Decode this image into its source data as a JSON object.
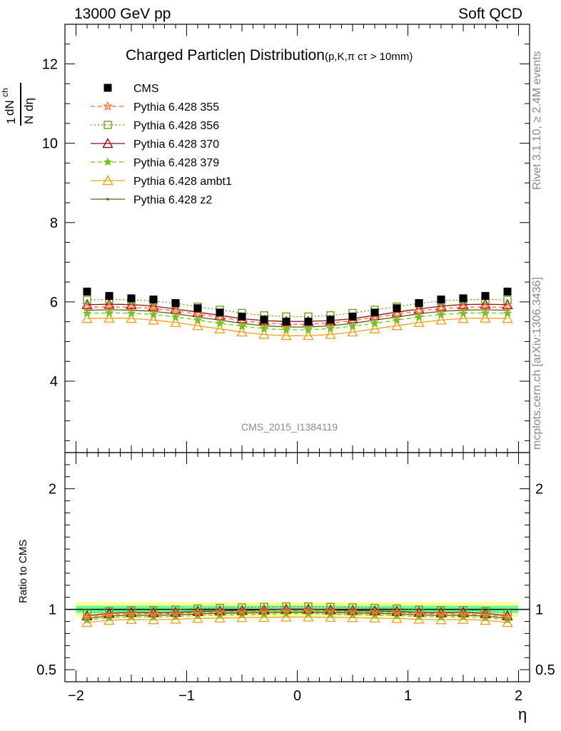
{
  "header": {
    "left": "13000 GeV pp",
    "right": "Soft QCD"
  },
  "plot_title": {
    "main": "Charged Particleη Distribution",
    "sub": "(p,K,π cτ > 10mm)"
  },
  "side_labels": {
    "rivet": "Rivet 3.1.10, ≥ 2.4M events",
    "mcplots": "mcplots.cern.ch [arXiv:1306.3436]"
  },
  "watermark": "CMS_2015_I1384119",
  "axes": {
    "ylabel_main_num": "1",
    "ylabel_main_dn": "dN",
    "ylabel_main_ch": "ch",
    "ylabel_main_N": "N",
    "ylabel_main_deta": "dη",
    "ylabel_ratio": "Ratio to CMS",
    "xlabel": "η"
  },
  "colors": {
    "cms": "#000000",
    "p355": "#ff6d2a",
    "p356": "#6e9c1a",
    "p370": "#8e0e1e",
    "p379": "#6fc41f",
    "ambt1": "#f0a21e",
    "z2": "#5f5a14",
    "band_inner": "#66ff99",
    "band_outer": "#ffff99"
  },
  "chart_data": [
    {
      "type": "scatter",
      "panel": "main",
      "x": [
        -1.9,
        -1.7,
        -1.5,
        -1.3,
        -1.1,
        -0.9,
        -0.7,
        -0.5,
        -0.3,
        -0.1,
        0.1,
        0.3,
        0.5,
        0.7,
        0.9,
        1.1,
        1.3,
        1.5,
        1.7,
        1.9
      ],
      "xlim": [
        -2.1,
        2.1
      ],
      "ylim": [
        2.2,
        13.0
      ],
      "xticks": [
        -2,
        -1,
        0,
        1,
        2
      ],
      "xtick_labels": [
        "−2",
        "−1",
        "0",
        "1",
        "2"
      ],
      "yticks": [
        4,
        6,
        8,
        10,
        12
      ],
      "ytick_labels": [
        "4",
        "6",
        "8",
        "10",
        "12"
      ],
      "series": [
        {
          "name": "CMS",
          "key": "cms",
          "marker": "square",
          "line": "none",
          "values": [
            6.26,
            6.15,
            6.09,
            6.06,
            5.97,
            5.84,
            5.73,
            5.63,
            5.55,
            5.5,
            5.5,
            5.55,
            5.63,
            5.73,
            5.84,
            5.97,
            6.06,
            6.09,
            6.15,
            6.26
          ]
        },
        {
          "name": "Pythia 6.428 355",
          "key": "p355",
          "marker": "star-open",
          "line": "dashed",
          "values": [
            5.86,
            5.87,
            5.86,
            5.83,
            5.77,
            5.69,
            5.61,
            5.53,
            5.47,
            5.44,
            5.44,
            5.47,
            5.53,
            5.61,
            5.69,
            5.77,
            5.83,
            5.86,
            5.87,
            5.86
          ]
        },
        {
          "name": "Pythia 6.428 356",
          "key": "p356",
          "marker": "square-open",
          "line": "dotted",
          "values": [
            6.05,
            6.06,
            6.05,
            6.02,
            5.96,
            5.88,
            5.8,
            5.72,
            5.66,
            5.63,
            5.63,
            5.66,
            5.72,
            5.8,
            5.88,
            5.96,
            6.02,
            6.05,
            6.06,
            6.05
          ]
        },
        {
          "name": "Pythia 6.428 370",
          "key": "p370",
          "marker": "triangle-open",
          "line": "solid",
          "values": [
            5.93,
            5.94,
            5.93,
            5.89,
            5.82,
            5.74,
            5.66,
            5.58,
            5.53,
            5.51,
            5.51,
            5.53,
            5.58,
            5.66,
            5.74,
            5.82,
            5.89,
            5.93,
            5.94,
            5.93
          ]
        },
        {
          "name": "Pythia 6.428 379",
          "key": "p379",
          "marker": "star",
          "line": "dashed",
          "values": [
            5.71,
            5.72,
            5.71,
            5.68,
            5.62,
            5.54,
            5.46,
            5.39,
            5.33,
            5.3,
            5.3,
            5.33,
            5.39,
            5.46,
            5.54,
            5.62,
            5.68,
            5.71,
            5.72,
            5.71
          ]
        },
        {
          "name": "Pythia 6.428 ambt1",
          "key": "ambt1",
          "marker": "triangle-open",
          "line": "solid",
          "values": [
            5.58,
            5.59,
            5.58,
            5.54,
            5.48,
            5.4,
            5.32,
            5.24,
            5.18,
            5.15,
            5.15,
            5.18,
            5.24,
            5.32,
            5.4,
            5.48,
            5.54,
            5.58,
            5.59,
            5.58
          ]
        },
        {
          "name": "Pythia 6.428 z2",
          "key": "z2",
          "marker": "dot",
          "line": "solid",
          "values": [
            5.79,
            5.8,
            5.79,
            5.76,
            5.7,
            5.62,
            5.54,
            5.46,
            5.4,
            5.37,
            5.37,
            5.4,
            5.46,
            5.54,
            5.62,
            5.7,
            5.76,
            5.79,
            5.8,
            5.79
          ]
        }
      ]
    },
    {
      "type": "line",
      "panel": "ratio",
      "x": [
        -1.9,
        -1.7,
        -1.5,
        -1.3,
        -1.1,
        -0.9,
        -0.7,
        -0.5,
        -0.3,
        -0.1,
        0.1,
        0.3,
        0.5,
        0.7,
        0.9,
        1.1,
        1.3,
        1.5,
        1.7,
        1.9
      ],
      "ylim": [
        0.4,
        2.3
      ],
      "yticks": [
        0.5,
        1,
        2
      ],
      "ytick_labels": [
        "0.5",
        "1",
        "2"
      ],
      "band_inner": 0.03,
      "band_outer": 0.06,
      "series": [
        {
          "name": "Pythia 6.428 355",
          "key": "p355",
          "marker": "star-open",
          "line": "dashed",
          "values": [
            0.936,
            0.954,
            0.962,
            0.962,
            0.966,
            0.974,
            0.979,
            0.982,
            0.986,
            0.989,
            0.989,
            0.986,
            0.982,
            0.979,
            0.974,
            0.966,
            0.962,
            0.962,
            0.954,
            0.936
          ]
        },
        {
          "name": "Pythia 6.428 356",
          "key": "p356",
          "marker": "square-open",
          "line": "dotted",
          "values": [
            0.966,
            0.985,
            0.993,
            0.993,
            0.998,
            1.007,
            1.012,
            1.016,
            1.02,
            1.024,
            1.024,
            1.02,
            1.016,
            1.012,
            1.007,
            0.998,
            0.993,
            0.993,
            0.985,
            0.966
          ]
        },
        {
          "name": "Pythia 6.428 370",
          "key": "p370",
          "marker": "triangle-open",
          "line": "solid",
          "values": [
            0.947,
            0.966,
            0.974,
            0.972,
            0.975,
            0.983,
            0.988,
            0.991,
            0.996,
            1.002,
            1.002,
            0.996,
            0.991,
            0.988,
            0.983,
            0.975,
            0.972,
            0.974,
            0.966,
            0.947
          ]
        },
        {
          "name": "Pythia 6.428 379",
          "key": "p379",
          "marker": "star",
          "line": "dashed",
          "values": [
            0.912,
            0.93,
            0.938,
            0.937,
            0.941,
            0.949,
            0.953,
            0.957,
            0.96,
            0.964,
            0.964,
            0.96,
            0.957,
            0.953,
            0.949,
            0.941,
            0.937,
            0.938,
            0.93,
            0.912
          ]
        },
        {
          "name": "Pythia 6.428 ambt1",
          "key": "ambt1",
          "marker": "triangle-open",
          "line": "solid",
          "values": [
            0.891,
            0.909,
            0.916,
            0.914,
            0.918,
            0.925,
            0.928,
            0.931,
            0.933,
            0.936,
            0.936,
            0.933,
            0.931,
            0.928,
            0.925,
            0.918,
            0.914,
            0.916,
            0.909,
            0.891
          ]
        },
        {
          "name": "Pythia 6.428 z2",
          "key": "z2",
          "marker": "dot",
          "line": "solid",
          "values": [
            0.925,
            0.943,
            0.951,
            0.95,
            0.955,
            0.962,
            0.967,
            0.97,
            0.973,
            0.976,
            0.976,
            0.973,
            0.97,
            0.967,
            0.962,
            0.955,
            0.95,
            0.951,
            0.943,
            0.925
          ]
        }
      ]
    }
  ]
}
